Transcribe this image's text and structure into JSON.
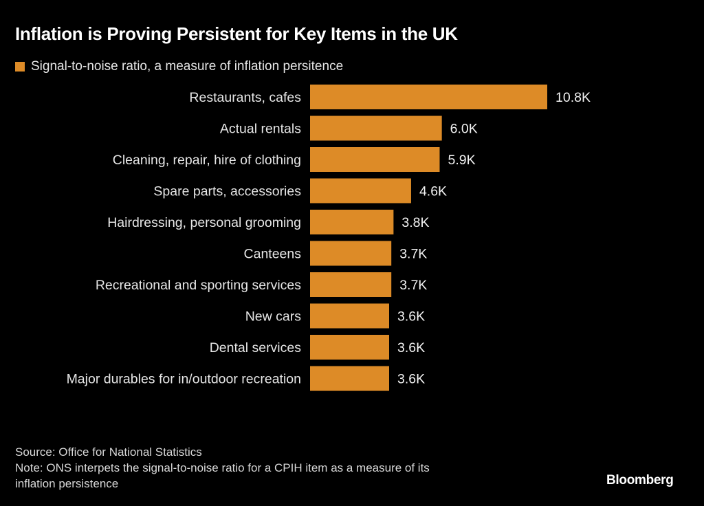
{
  "colors": {
    "bar": "#dd8b27",
    "background": "#000000"
  },
  "chart_data": {
    "type": "bar",
    "orientation": "horizontal",
    "title": "Inflation is Proving Persistent for Key Items in the UK",
    "legend": [
      "Signal-to-noise ratio, a measure of inflation persitence"
    ],
    "legend_placement": "top-left",
    "categories": [
      "Restaurants, cafes",
      "Actual rentals",
      "Cleaning, repair, hire of clothing",
      "Spare parts, accessories",
      "Hairdressing, personal grooming",
      "Canteens",
      "Recreational and sporting services",
      "New cars",
      "Dental services",
      "Major durables for in/outdoor recreation"
    ],
    "values": [
      10800,
      6000,
      5900,
      4600,
      3800,
      3700,
      3700,
      3600,
      3600,
      3600
    ],
    "value_labels": [
      "10.8K",
      "6.0K",
      "5.9K",
      "4.6K",
      "3.8K",
      "3.7K",
      "3.7K",
      "3.6K",
      "3.6K",
      "3.6K"
    ],
    "xlabel": "",
    "ylabel": "",
    "xlim": [
      0,
      10800
    ],
    "grid": false
  },
  "footer": {
    "source": "Source: Office for National Statistics",
    "note_line1": "Note: ONS interpets the signal-to-noise ratio for a CPIH item as a measure of its",
    "note_line2": "inflation persistence",
    "brand": "Bloomberg"
  }
}
